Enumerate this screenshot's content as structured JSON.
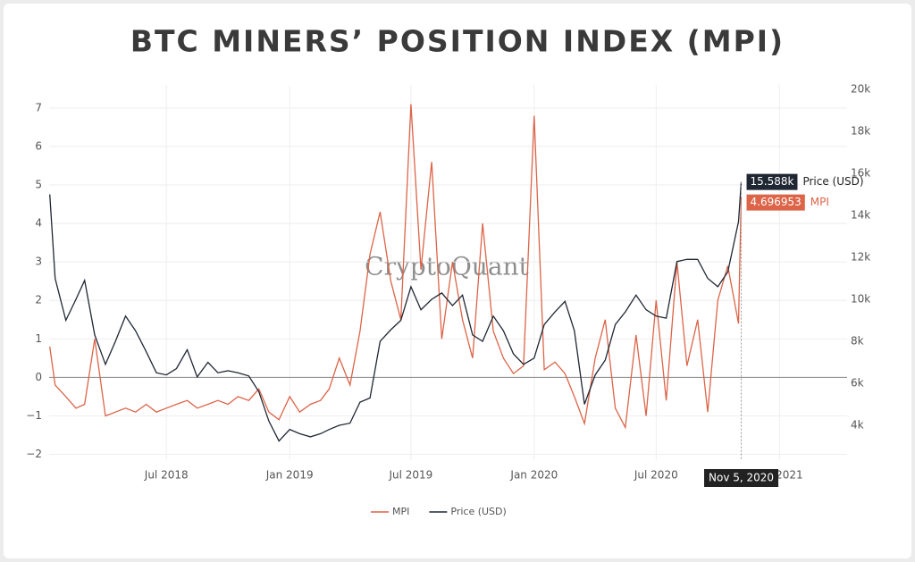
{
  "chart_data": {
    "type": "line",
    "title": "BTC MINERS’ POSITION INDEX (MPI)",
    "watermark": "CryptoQuant",
    "x": [
      "2018-01-08",
      "2018-01-16",
      "2018-02-01",
      "2018-02-16",
      "2018-03-01",
      "2018-03-16",
      "2018-04-01",
      "2018-04-16",
      "2018-05-01",
      "2018-05-16",
      "2018-06-01",
      "2018-06-16",
      "2018-07-01",
      "2018-07-16",
      "2018-08-01",
      "2018-08-16",
      "2018-09-01",
      "2018-09-16",
      "2018-10-01",
      "2018-10-16",
      "2018-11-01",
      "2018-11-16",
      "2018-12-01",
      "2018-12-16",
      "2019-01-01",
      "2019-01-16",
      "2019-02-01",
      "2019-02-16",
      "2019-03-01",
      "2019-03-16",
      "2019-04-01",
      "2019-04-16",
      "2019-05-01",
      "2019-05-16",
      "2019-06-01",
      "2019-06-16",
      "2019-07-01",
      "2019-07-16",
      "2019-08-01",
      "2019-08-16",
      "2019-09-01",
      "2019-09-16",
      "2019-10-01",
      "2019-10-16",
      "2019-11-01",
      "2019-11-16",
      "2019-12-01",
      "2019-12-16",
      "2020-01-01",
      "2020-01-16",
      "2020-02-01",
      "2020-02-16",
      "2020-03-01",
      "2020-03-16",
      "2020-04-01",
      "2020-04-16",
      "2020-05-01",
      "2020-05-16",
      "2020-06-01",
      "2020-06-16",
      "2020-07-01",
      "2020-07-16",
      "2020-08-01",
      "2020-08-16",
      "2020-09-01",
      "2020-09-16",
      "2020-10-01",
      "2020-10-16",
      "2020-11-01",
      "2020-11-05"
    ],
    "series": [
      {
        "name": "MPI",
        "color": "#dc6448",
        "axis": "y",
        "values": [
          0.8,
          -0.2,
          -0.5,
          -0.8,
          -0.7,
          1.0,
          -1.0,
          -0.9,
          -0.8,
          -0.9,
          -0.7,
          -0.9,
          -0.8,
          -0.7,
          -0.6,
          -0.8,
          -0.7,
          -0.6,
          -0.7,
          -0.5,
          -0.6,
          -0.3,
          -0.9,
          -1.1,
          -0.5,
          -0.9,
          -0.7,
          -0.6,
          -0.3,
          0.5,
          -0.2,
          1.2,
          3.2,
          4.3,
          2.5,
          1.5,
          7.1,
          2.8,
          5.6,
          1.0,
          3.0,
          1.5,
          0.5,
          4.0,
          1.2,
          0.5,
          0.1,
          0.3,
          6.8,
          0.2,
          0.4,
          0.1,
          -0.5,
          -1.2,
          0.5,
          1.5,
          -0.8,
          -1.3,
          1.1,
          -1.0,
          2.0,
          -0.6,
          3.0,
          0.3,
          1.5,
          -0.9,
          2.0,
          2.9,
          1.4,
          4.696953
        ]
      },
      {
        "name": "Price (USD)",
        "color": "#1f2733",
        "axis": "y2",
        "values": [
          15000,
          11000,
          9000,
          10000,
          10900,
          8300,
          6900,
          8000,
          9200,
          8500,
          7500,
          6500,
          6400,
          6700,
          7600,
          6300,
          7000,
          6500,
          6600,
          6500,
          6350,
          5600,
          4200,
          3250,
          3800,
          3600,
          3450,
          3600,
          3800,
          4000,
          4100,
          5100,
          5300,
          8000,
          8550,
          9000,
          10600,
          9500,
          10000,
          10300,
          9700,
          10200,
          8300,
          8000,
          9200,
          8500,
          7400,
          6900,
          7200,
          8800,
          9400,
          9900,
          8500,
          5000,
          6400,
          7100,
          8800,
          9400,
          10200,
          9500,
          9200,
          9100,
          11800,
          11900,
          11900,
          11000,
          10600,
          11300,
          13700,
          15588
        ]
      }
    ],
    "xlim": [
      "2018-01-07",
      "2021-04-12"
    ],
    "xticks": [
      {
        "value": "2018-07-01",
        "label": "Jul 2018"
      },
      {
        "value": "2019-01-01",
        "label": "Jan 2019"
      },
      {
        "value": "2019-07-01",
        "label": "Jul 2019"
      },
      {
        "value": "2020-01-01",
        "label": "Jan 2020"
      },
      {
        "value": "2020-07-01",
        "label": "Jul 2020"
      },
      {
        "value": "2021-01-01",
        "label": "Jan 2021"
      }
    ],
    "ylim": [
      -2.15,
      7.6
    ],
    "yticks": [
      {
        "value": -2,
        "label": "−2"
      },
      {
        "value": -1,
        "label": "−1"
      },
      0,
      1,
      2,
      3,
      4,
      5,
      6,
      7
    ],
    "y2lim": [
      2340,
      20210
    ],
    "y2ticks": [
      {
        "value": 4000,
        "label": "4k"
      },
      {
        "value": 6000,
        "label": "6k"
      },
      {
        "value": 8000,
        "label": "8k"
      },
      {
        "value": 10000,
        "label": "10k"
      },
      {
        "value": 12000,
        "label": "12k"
      },
      {
        "value": 14000,
        "label": "14k"
      },
      {
        "value": 16000,
        "label": "16k"
      },
      {
        "value": 18000,
        "label": "18k"
      },
      {
        "value": 20000,
        "label": "20k"
      }
    ],
    "grid": true,
    "legend": "bottom",
    "hover": {
      "x_label": "Nov 5, 2020",
      "price_label": "15.588k",
      "mpi_label": "4.696953"
    }
  }
}
